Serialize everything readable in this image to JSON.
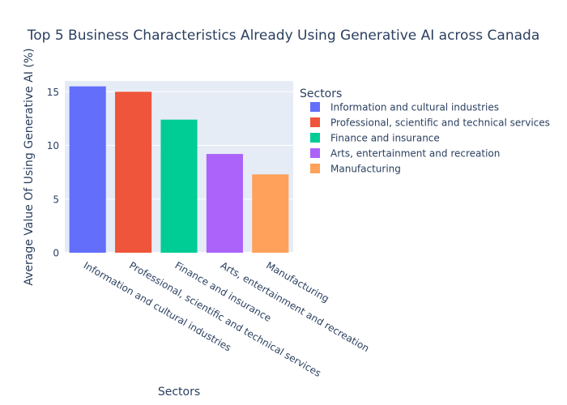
{
  "chart_data": {
    "type": "bar",
    "title": "Top 5 Business Characteristics Already Using Generative AI across Canada",
    "xlabel": "Sectors",
    "ylabel": "Average Value Of Using Generative AI (%)",
    "ylim": [
      0,
      16
    ],
    "yticks": [
      0,
      5,
      10,
      15
    ],
    "grid": true,
    "categories": [
      "Information and cultural industries",
      "Professional, scientific and technical services",
      "Finance and insurance",
      "Arts, entertainment and recreation",
      "Manufacturing"
    ],
    "values": [
      15.5,
      15.0,
      12.4,
      9.2,
      7.3
    ],
    "colors": [
      "#636efa",
      "#ef553b",
      "#00cc96",
      "#ab63fa",
      "#ffa15a"
    ],
    "legend": {
      "title": "Sectors",
      "position": "right",
      "entries": [
        "Information and cultural industries",
        "Professional, scientific and technical services",
        "Finance and insurance",
        "Arts, entertainment and recreation",
        "Manufacturing"
      ]
    },
    "plot_background": "#e5ecf6",
    "gridline_color": "#ffffff",
    "text_color": "#2a3f5f"
  }
}
